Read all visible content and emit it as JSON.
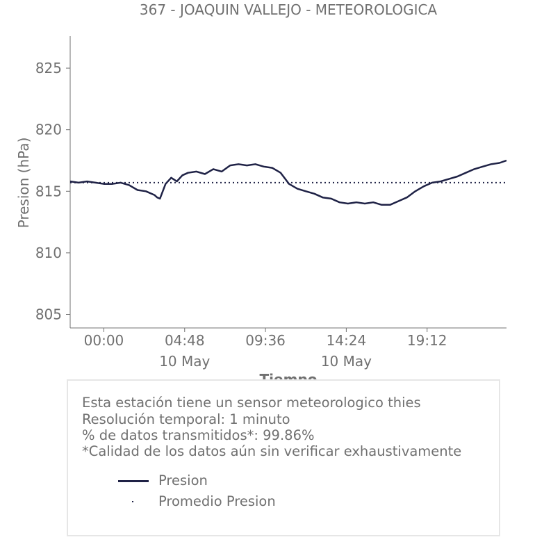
{
  "title": "367 - JOAQUIN VALLEJO - METEOROLOGICA",
  "info": {
    "lines": [
      "Esta estación tiene un sensor meteorologico thies",
      "Resolución temporal: 1 minuto",
      "% de datos transmitidos*: 99.86%",
      "*Calidad de los datos aún sin verificar exhaustivamente"
    ]
  },
  "legend": {
    "items": [
      {
        "label": "Presion",
        "style": "line"
      },
      {
        "label": "Promedio Presion",
        "style": "dotted"
      }
    ]
  },
  "colors": {
    "series": "#1f2246",
    "text": "#707070",
    "axis": "#707070"
  },
  "chart_data": {
    "type": "line",
    "title": "367 - JOAQUIN VALLEJO - METEOROLOGICA",
    "xlabel": "Tiempo",
    "ylabel": "Presion (hPa)",
    "ylim": [
      803.9,
      827.6
    ],
    "yticks": [
      805,
      810,
      815,
      820,
      825
    ],
    "xlim": [
      "05-09 22:00",
      "05-10 23:55"
    ],
    "xticks": [
      {
        "value": "05-10 00:00",
        "label": "00:00",
        "sublabel": ""
      },
      {
        "value": "05-10 04:48",
        "label": "04:48",
        "sublabel": "10 May"
      },
      {
        "value": "05-10 09:36",
        "label": "09:36",
        "sublabel": ""
      },
      {
        "value": "05-10 14:24",
        "label": "14:24",
        "sublabel": "10 May"
      },
      {
        "value": "05-10 19:12",
        "label": "19:12",
        "sublabel": ""
      }
    ],
    "grid": false,
    "series": [
      {
        "name": "Presion",
        "style": "solid",
        "x": [
          "05-09 22:00",
          "05-09 22:30",
          "05-09 23:00",
          "05-09 23:30",
          "05-10 00:00",
          "05-10 00:30",
          "05-10 01:00",
          "05-10 01:30",
          "05-10 02:00",
          "05-10 02:30",
          "05-10 03:00",
          "05-10 03:10",
          "05-10 03:20",
          "05-10 03:40",
          "05-10 04:00",
          "05-10 04:20",
          "05-10 04:40",
          "05-10 05:00",
          "05-10 05:30",
          "05-10 06:00",
          "05-10 06:30",
          "05-10 07:00",
          "05-10 07:30",
          "05-10 08:00",
          "05-10 08:30",
          "05-10 09:00",
          "05-10 09:30",
          "05-10 10:00",
          "05-10 10:30",
          "05-10 11:00",
          "05-10 11:30",
          "05-10 12:00",
          "05-10 12:30",
          "05-10 13:00",
          "05-10 13:30",
          "05-10 14:00",
          "05-10 14:30",
          "05-10 15:00",
          "05-10 15:30",
          "05-10 16:00",
          "05-10 16:30",
          "05-10 17:00",
          "05-10 17:30",
          "05-10 18:00",
          "05-10 18:30",
          "05-10 19:00",
          "05-10 19:30",
          "05-10 20:00",
          "05-10 20:30",
          "05-10 21:00",
          "05-10 21:30",
          "05-10 22:00",
          "05-10 22:30",
          "05-10 23:00",
          "05-10 23:30",
          "05-10 23:55"
        ],
        "y": [
          815.8,
          815.7,
          815.8,
          815.7,
          815.6,
          815.6,
          815.7,
          815.5,
          815.1,
          815.0,
          814.7,
          814.5,
          814.4,
          815.6,
          816.1,
          815.8,
          816.3,
          816.5,
          816.6,
          816.4,
          816.8,
          816.6,
          817.1,
          817.2,
          817.1,
          817.2,
          817.0,
          816.9,
          816.5,
          815.6,
          815.2,
          815.0,
          814.8,
          814.5,
          814.4,
          814.1,
          814.0,
          814.1,
          814.0,
          814.1,
          813.9,
          813.9,
          814.2,
          814.5,
          815.0,
          815.4,
          815.7,
          815.8,
          816.0,
          816.2,
          816.5,
          816.8,
          817.0,
          817.2,
          817.3,
          817.5
        ]
      },
      {
        "name": "Promedio Presion",
        "style": "dotted",
        "x": [
          "05-09 22:00",
          "05-10 23:55"
        ],
        "y": [
          815.7,
          815.7
        ]
      }
    ]
  }
}
